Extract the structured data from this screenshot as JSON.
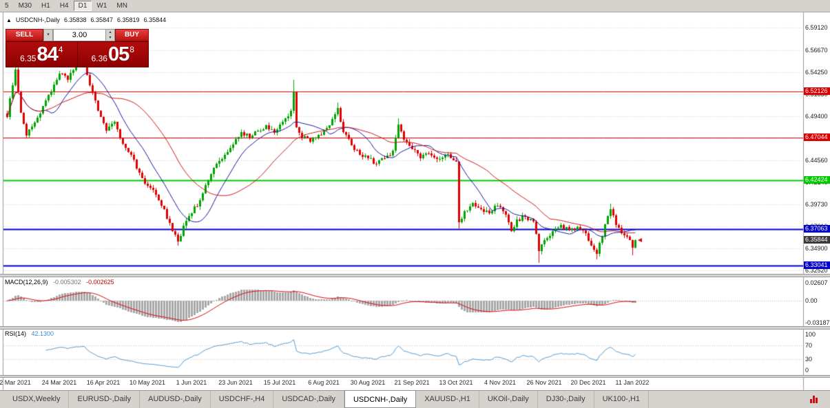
{
  "toolbar": {
    "timeframes": [
      {
        "label": "5",
        "active": false
      },
      {
        "label": "M30",
        "active": false
      },
      {
        "label": "H1",
        "active": false
      },
      {
        "label": "H4",
        "active": false
      },
      {
        "label": "D1",
        "active": true
      },
      {
        "label": "W1",
        "active": false
      },
      {
        "label": "MN",
        "active": false
      }
    ]
  },
  "icons": {
    "one_click_toggle": "▲",
    "dropdown": "▾",
    "spin_up": "▴",
    "spin_down": "▾"
  },
  "chart": {
    "symbol_title": "USDCNH-,Daily",
    "ohlc": {
      "open": "6.35838",
      "high": "6.35847",
      "low": "6.35819",
      "close": "6.35844"
    },
    "trade_panel": {
      "sell_label": "SELL",
      "buy_label": "BUY",
      "volume": "3.00",
      "sell_price": {
        "prefix": "6.35",
        "big": "84",
        "sup": "4"
      },
      "buy_price": {
        "prefix": "6.36",
        "big": "05",
        "sup": "8"
      }
    },
    "price_axis": {
      "ticks": [
        {
          "label": "6.59120",
          "value": 6.5912
        },
        {
          "label": "6.56670",
          "value": 6.5667
        },
        {
          "label": "6.54250",
          "value": 6.5425
        },
        {
          "label": "6.51830",
          "value": 6.5183
        },
        {
          "label": "6.49400",
          "value": 6.494
        },
        {
          "label": "6.46980",
          "value": 6.4698
        },
        {
          "label": "6.44560",
          "value": 6.4456
        },
        {
          "label": "6.42140",
          "value": 6.4214
        },
        {
          "label": "6.39730",
          "value": 6.3973
        },
        {
          "label": "6.37310",
          "value": 6.3731
        },
        {
          "label": "6.34900",
          "value": 6.349
        },
        {
          "label": "6.32520",
          "value": 6.3252
        }
      ]
    },
    "levels": [
      {
        "label": "6.52126",
        "value": 6.52126,
        "color": "#dd0000",
        "width": 1
      },
      {
        "label": "6.47044",
        "value": 6.47044,
        "color": "#dd0000",
        "width": 1
      },
      {
        "label": "6.42424",
        "value": 6.42424,
        "color": "#00cc00",
        "width": 2
      },
      {
        "label": "6.37063",
        "value": 6.37063,
        "color": "#0000cc",
        "width": 2
      },
      {
        "label": "6.33041",
        "value": 6.33041,
        "color": "#0000cc",
        "width": 2
      }
    ],
    "current_price": {
      "label": "6.35844",
      "value": 6.35844,
      "bg": "#3a3a3a"
    }
  },
  "macd": {
    "label": "MACD(12,26,9)",
    "value1": "-0.005302",
    "value2": "-0.002625",
    "axis": [
      {
        "label": "0.02607",
        "value": 0.02607
      },
      {
        "label": "0.00",
        "value": 0
      },
      {
        "label": "-0.03187",
        "value": -0.03187
      }
    ]
  },
  "rsi": {
    "label": "RSI(14)",
    "value": "42.1300",
    "axis": [
      {
        "label": "100",
        "value": 100
      },
      {
        "label": "70",
        "value": 70
      },
      {
        "label": "30",
        "value": 30
      },
      {
        "label": "0",
        "value": 0
      }
    ]
  },
  "tabs": [
    {
      "label": "USDX,Weekly",
      "active": false
    },
    {
      "label": "EURUSD-,Daily",
      "active": false
    },
    {
      "label": "AUDUSD-,Daily",
      "active": false
    },
    {
      "label": "USDCHF-,H4",
      "active": false
    },
    {
      "label": "USDCAD-,Daily",
      "active": false
    },
    {
      "label": "USDCNH-,Daily",
      "active": true
    },
    {
      "label": "XAUUSD-,H1",
      "active": false
    },
    {
      "label": "UKOil-,Daily",
      "active": false
    },
    {
      "label": "DJ30-,Daily",
      "active": false
    },
    {
      "label": "UK100-,H1",
      "active": false
    }
  ],
  "colors": {
    "candle_up": "#00a400",
    "candle_down": "#e00000",
    "ma_fast": "#1414a8",
    "ma_slow": "#cc1414",
    "macd_hist": "#a8a8a8",
    "macd_signal": "#dd0000",
    "rsi_line": "#4f9bd5",
    "grid": "#d0d0d0",
    "frame": "#9a9a9a"
  },
  "chart_data": {
    "type": "candlestick",
    "title": "USDCNH-,Daily",
    "bars_total": 229,
    "ylim": [
      6.3252,
      6.5912
    ],
    "x_ticks": [
      [
        3,
        "2 Mar 2021"
      ],
      [
        19,
        "24 Mar 2021"
      ],
      [
        35,
        "16 Apr 2021"
      ],
      [
        51,
        "10 May 2021"
      ],
      [
        67,
        "1 Jun 2021"
      ],
      [
        83,
        "23 Jun 2021"
      ],
      [
        99,
        "15 Jul 2021"
      ],
      [
        115,
        "6 Aug 2021"
      ],
      [
        131,
        "30 Aug 2021"
      ],
      [
        147,
        "21 Sep 2021"
      ],
      [
        163,
        "13 Oct 2021"
      ],
      [
        179,
        "4 Nov 2021"
      ],
      [
        195,
        "26 Nov 2021"
      ],
      [
        211,
        "20 Dec 2021"
      ],
      [
        227,
        "11 Jan 2022"
      ]
    ],
    "close_anchors": [
      [
        0,
        6.493
      ],
      [
        2,
        6.528
      ],
      [
        3,
        6.545
      ],
      [
        5,
        6.498
      ],
      [
        7,
        6.473
      ],
      [
        10,
        6.487
      ],
      [
        13,
        6.505
      ],
      [
        16,
        6.52
      ],
      [
        19,
        6.541
      ],
      [
        22,
        6.534
      ],
      [
        25,
        6.549
      ],
      [
        28,
        6.552
      ],
      [
        30,
        6.528
      ],
      [
        33,
        6.5
      ],
      [
        36,
        6.478
      ],
      [
        39,
        6.488
      ],
      [
        42,
        6.464
      ],
      [
        45,
        6.452
      ],
      [
        48,
        6.432
      ],
      [
        51,
        6.418
      ],
      [
        54,
        6.408
      ],
      [
        57,
        6.392
      ],
      [
        60,
        6.368
      ],
      [
        62,
        6.357
      ],
      [
        64,
        6.374
      ],
      [
        67,
        6.388
      ],
      [
        70,
        6.402
      ],
      [
        73,
        6.424
      ],
      [
        76,
        6.442
      ],
      [
        79,
        6.452
      ],
      [
        82,
        6.463
      ],
      [
        85,
        6.477
      ],
      [
        88,
        6.471
      ],
      [
        91,
        6.478
      ],
      [
        94,
        6.484
      ],
      [
        97,
        6.476
      ],
      [
        100,
        6.488
      ],
      [
        103,
        6.5
      ],
      [
        104,
        6.52
      ],
      [
        105,
        6.482
      ],
      [
        107,
        6.471
      ],
      [
        110,
        6.466
      ],
      [
        113,
        6.474
      ],
      [
        116,
        6.481
      ],
      [
        119,
        6.496
      ],
      [
        120,
        6.503
      ],
      [
        122,
        6.477
      ],
      [
        125,
        6.462
      ],
      [
        128,
        6.452
      ],
      [
        131,
        6.448
      ],
      [
        134,
        6.442
      ],
      [
        137,
        6.448
      ],
      [
        140,
        6.456
      ],
      [
        142,
        6.485
      ],
      [
        144,
        6.468
      ],
      [
        147,
        6.458
      ],
      [
        150,
        6.448
      ],
      [
        153,
        6.453
      ],
      [
        156,
        6.447
      ],
      [
        159,
        6.452
      ],
      [
        162,
        6.446
      ],
      [
        163,
        6.444
      ],
      [
        164,
        6.378
      ],
      [
        166,
        6.39
      ],
      [
        169,
        6.399
      ],
      [
        172,
        6.392
      ],
      [
        175,
        6.388
      ],
      [
        178,
        6.396
      ],
      [
        181,
        6.386
      ],
      [
        183,
        6.368
      ],
      [
        185,
        6.381
      ],
      [
        188,
        6.384
      ],
      [
        191,
        6.379
      ],
      [
        193,
        6.346
      ],
      [
        195,
        6.358
      ],
      [
        198,
        6.368
      ],
      [
        201,
        6.375
      ],
      [
        204,
        6.37
      ],
      [
        207,
        6.373
      ],
      [
        210,
        6.366
      ],
      [
        212,
        6.352
      ],
      [
        214,
        6.343
      ],
      [
        216,
        6.362
      ],
      [
        218,
        6.385
      ],
      [
        219,
        6.392
      ],
      [
        221,
        6.375
      ],
      [
        223,
        6.366
      ],
      [
        225,
        6.362
      ],
      [
        227,
        6.35
      ],
      [
        228,
        6.3584
      ]
    ],
    "wick_highs": [
      [
        3,
        6.557
      ],
      [
        28,
        6.559
      ],
      [
        104,
        6.534
      ],
      [
        120,
        6.509
      ],
      [
        142,
        6.492
      ],
      [
        219,
        6.398
      ]
    ],
    "wick_lows": [
      [
        62,
        6.3525
      ],
      [
        164,
        6.371
      ],
      [
        193,
        6.3335
      ],
      [
        214,
        6.337
      ],
      [
        227,
        6.3415
      ]
    ],
    "noise": {
      "seed": 12345,
      "close_amp": 0.003,
      "wick_amp": 0.0035
    },
    "indicators": {
      "ma_fast": 13,
      "ma_slow": 34,
      "macd_fast": 12,
      "macd_slow": 26,
      "macd_signal": 9,
      "rsi_period": 14
    },
    "levels": [
      6.52126,
      6.47044,
      6.42424,
      6.37063,
      6.33041
    ],
    "last_close": 6.35844
  }
}
